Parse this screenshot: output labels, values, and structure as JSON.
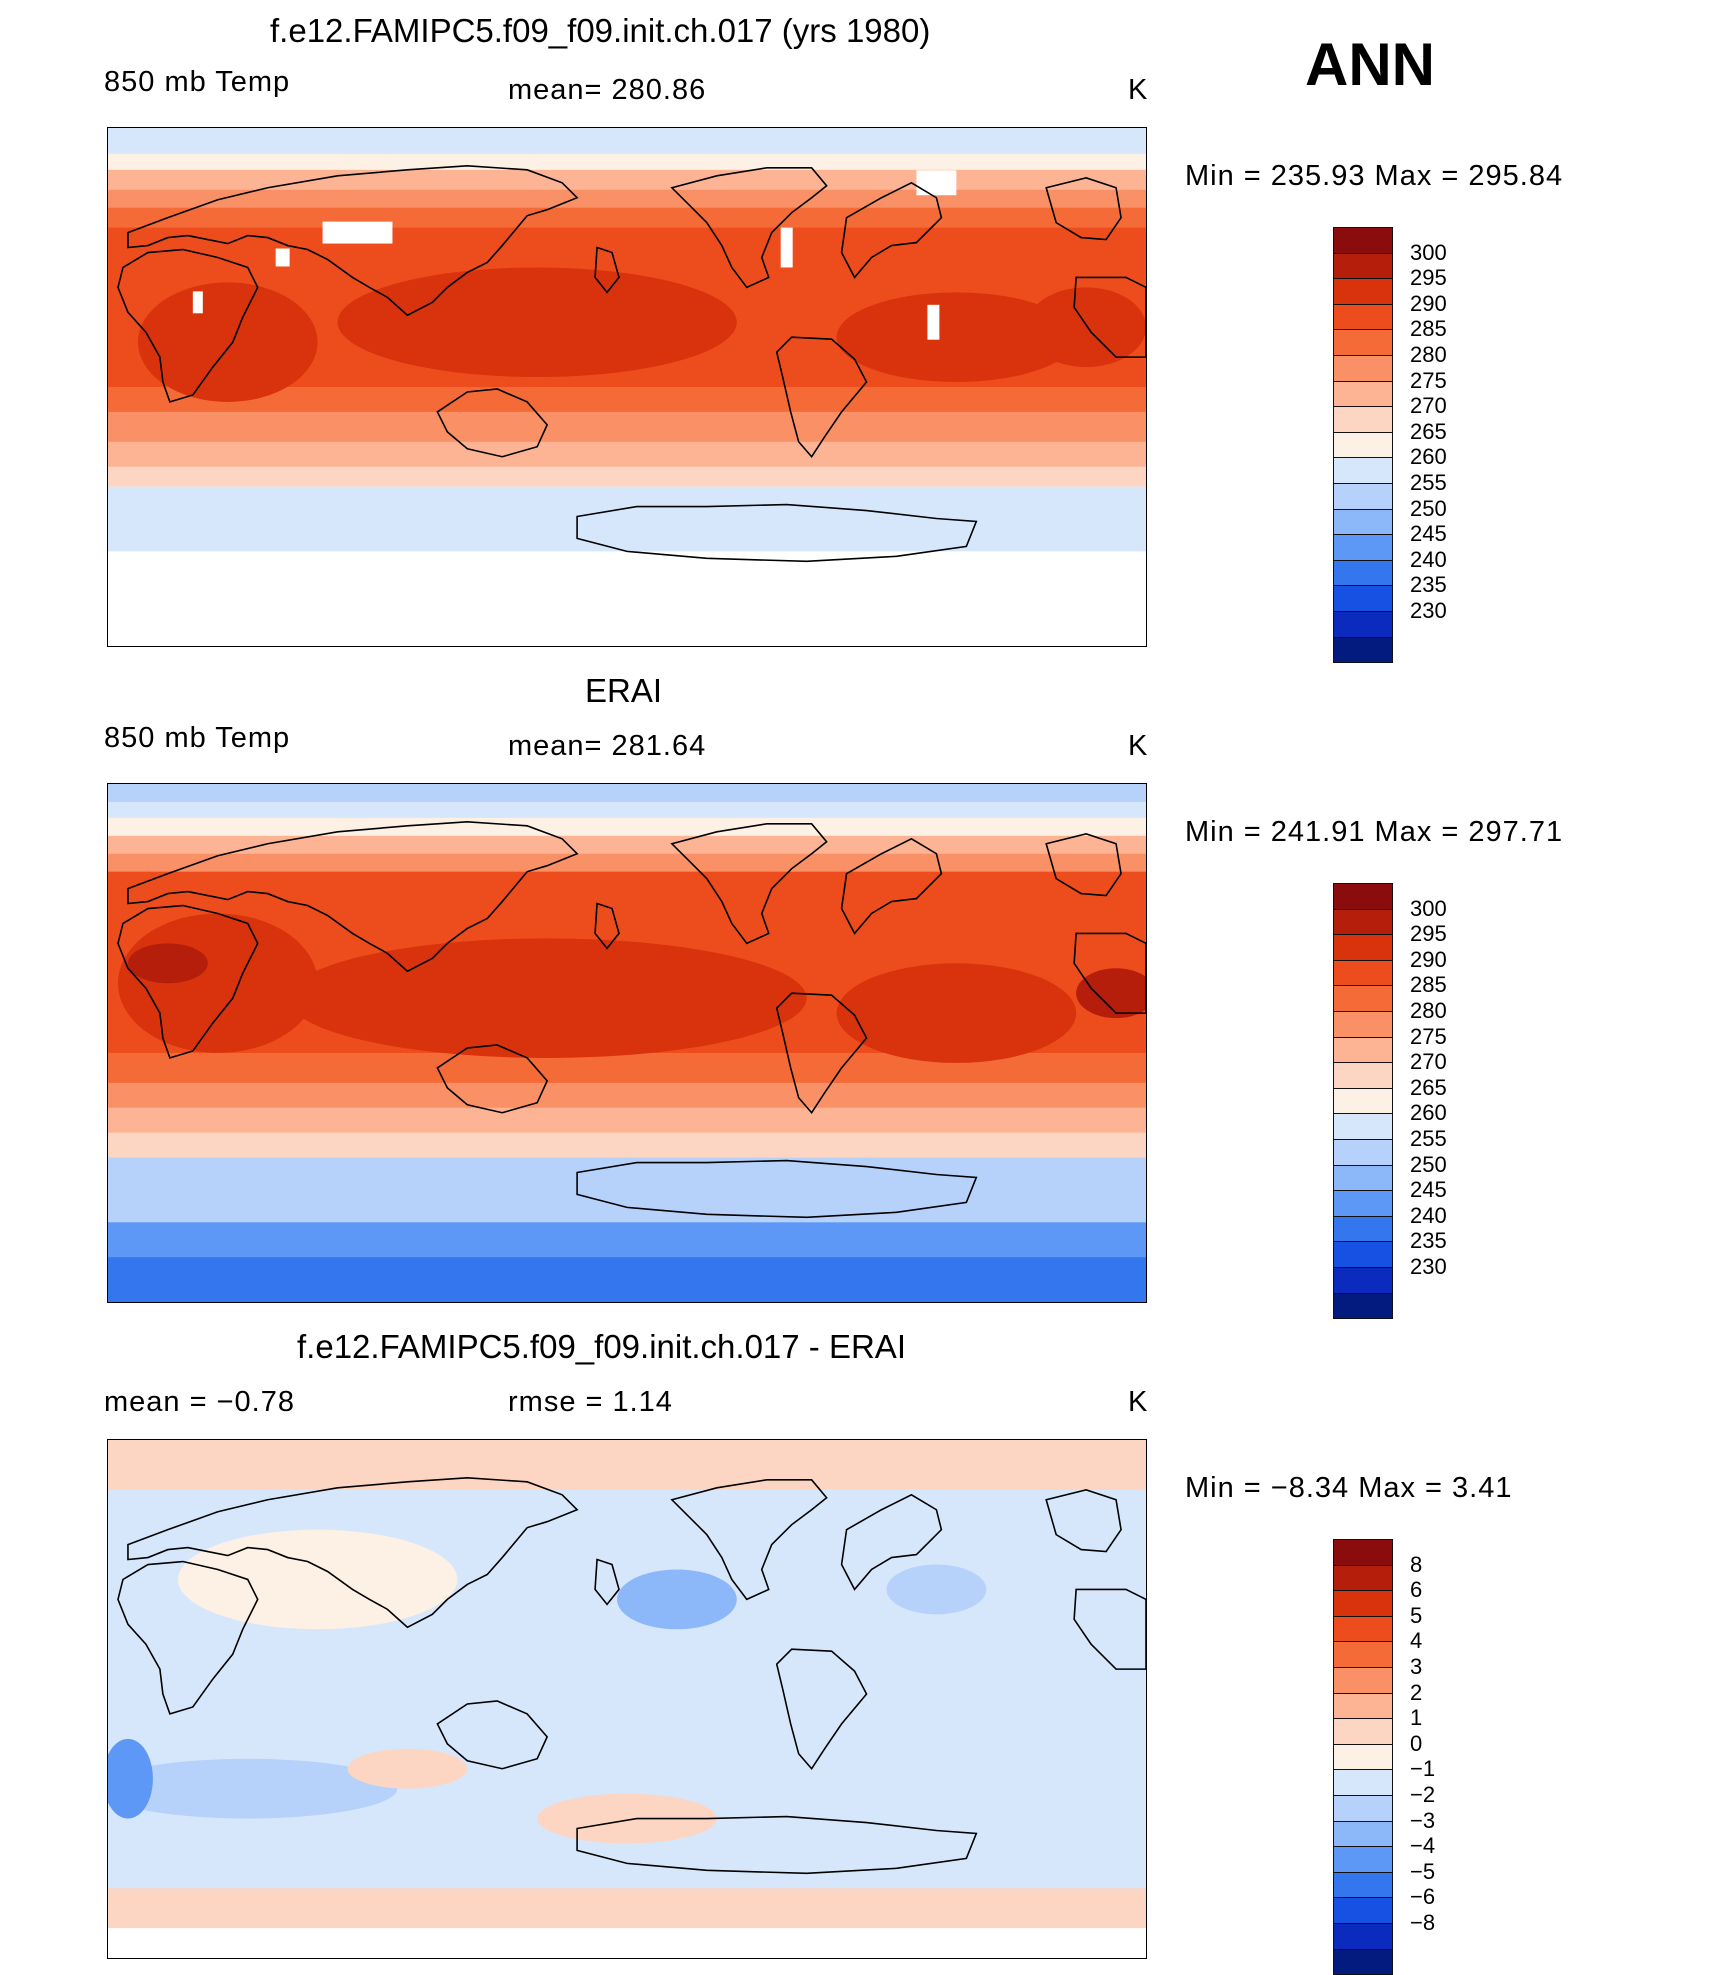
{
  "season": "ANN",
  "units": "K",
  "panels": [
    {
      "title": "f.e12.FAMIPC5.f09_f09.init.ch.017 (yrs 1980)",
      "left_label": "850 mb Temp",
      "center_label": "mean= 280.86",
      "units": "K",
      "minmax": "Min = 235.93 Max = 295.84",
      "type": "field",
      "has_white_land": true
    },
    {
      "title": "ERAI",
      "left_label": "850 mb Temp",
      "center_label": "mean= 281.64",
      "units": "K",
      "minmax": "Min = 241.91 Max = 297.71",
      "type": "field",
      "has_white_land": false
    },
    {
      "title": "f.e12.FAMIPC5.f09_f09.init.ch.017 - ERAI",
      "left_label": "mean = −0.78",
      "center_label": "rmse = 1.14",
      "units": "K",
      "minmax": "Min = −8.34 Max = 3.41",
      "type": "diff",
      "has_white_land": false
    }
  ],
  "colorbars": {
    "field": {
      "labels": [
        "300",
        "295",
        "290",
        "285",
        "280",
        "275",
        "270",
        "265",
        "260",
        "255",
        "250",
        "245",
        "240",
        "235",
        "230"
      ],
      "colors": [
        "#8a0c0c",
        "#b51e0a",
        "#d8330d",
        "#ed4d1c",
        "#f56b37",
        "#f99066",
        "#fcb494",
        "#fdd6c3",
        "#fdf0e4",
        "#d7e7fb",
        "#b6d2fb",
        "#8cb8fa",
        "#5e98f6",
        "#3476ee",
        "#1651e3",
        "#0a2bbd",
        "#031a7e"
      ]
    },
    "diff": {
      "labels": [
        "8",
        "6",
        "5",
        "4",
        "3",
        "2",
        "1",
        "0",
        "−1",
        "−2",
        "−3",
        "−4",
        "−5",
        "−6",
        "−8"
      ],
      "colors": [
        "#8a0c0c",
        "#b51e0a",
        "#d8330d",
        "#ed4d1c",
        "#f56b37",
        "#f99066",
        "#fcb494",
        "#fdd6c3",
        "#fdf0e4",
        "#d7e7fb",
        "#b6d2fb",
        "#8cb8fa",
        "#5e98f6",
        "#3476ee",
        "#1651e3",
        "#0a2bbd",
        "#031a7e"
      ]
    }
  }
}
